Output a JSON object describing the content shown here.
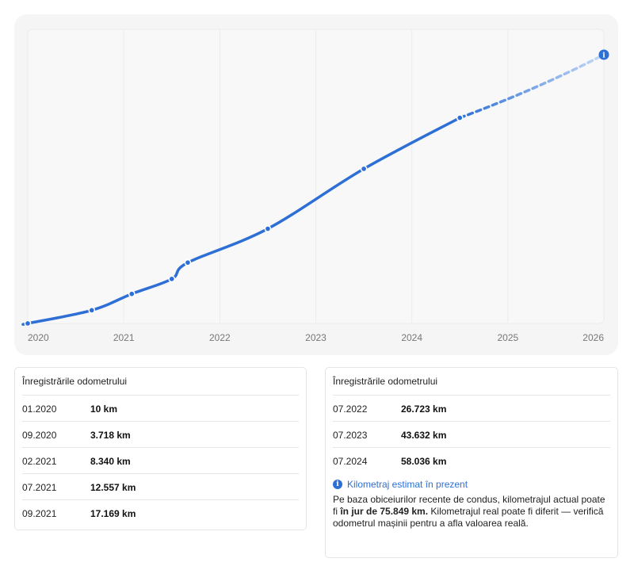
{
  "chart_data": {
    "type": "line",
    "x_ticks": [
      "2020",
      "2021",
      "2022",
      "2023",
      "2024",
      "2025",
      "2026"
    ],
    "series": [
      {
        "values": [
          {
            "date": "2020-01",
            "km": 10
          },
          {
            "date": "2020-09",
            "km": 3718
          },
          {
            "date": "2021-02",
            "km": 8340
          },
          {
            "date": "2021-07",
            "km": 12557
          },
          {
            "date": "2021-09",
            "km": 17169
          },
          {
            "date": "2022-07",
            "km": 26723
          },
          {
            "date": "2023-07",
            "km": 43632
          },
          {
            "date": "2024-07",
            "km": 58036
          }
        ]
      }
    ],
    "estimate": {
      "date": "2026-01",
      "km": 75849
    },
    "xlim": [
      "2020-01",
      "2026-01"
    ],
    "ylim": [
      0,
      75849
    ],
    "grid": "vertical",
    "line_color": "#2e6fd6",
    "estimate_color": "#a9c8f2"
  },
  "tables": {
    "left": {
      "title": "Înregistrările odometrului",
      "rows": [
        {
          "date": "01.2020",
          "km": "10 km"
        },
        {
          "date": "09.2020",
          "km": "3.718 km"
        },
        {
          "date": "02.2021",
          "km": "8.340 km"
        },
        {
          "date": "07.2021",
          "km": "12.557 km"
        },
        {
          "date": "09.2021",
          "km": "17.169 km"
        }
      ]
    },
    "right": {
      "title": "Înregistrările odometrului",
      "rows": [
        {
          "date": "07.2022",
          "km": "26.723 km"
        },
        {
          "date": "07.2023",
          "km": "43.632 km"
        },
        {
          "date": "07.2024",
          "km": "58.036 km"
        }
      ]
    }
  },
  "estimate_note": {
    "icon": "info-icon",
    "title": "Kilometraj estimat în prezent",
    "text_before": "Pe baza obiceiurilor recente de condus, kilometrajul actual poate fi ",
    "text_bold": "în jur de 75.849 km.",
    "text_after": " Kilometrajul real poate fi diferit — verifică odometrul mașinii pentru a afla valoarea reală."
  }
}
